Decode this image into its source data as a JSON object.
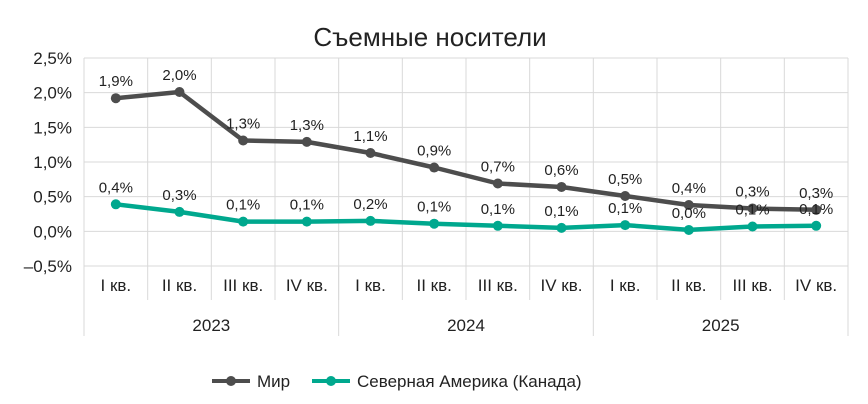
{
  "chart_data": {
    "type": "line",
    "title": "Съемные носители",
    "xlabel": "",
    "ylabel": "",
    "ylim": [
      -0.5,
      2.5
    ],
    "yticks": [
      "2,5%",
      "2,0%",
      "1,5%",
      "1,0%",
      "0,5%",
      "0,0%",
      "–0,5%"
    ],
    "ytick_values": [
      2.5,
      2.0,
      1.5,
      1.0,
      0.5,
      0.0,
      -0.5
    ],
    "categories": [
      "I кв.",
      "II кв.",
      "III кв.",
      "IV кв.",
      "I кв.",
      "II кв.",
      "III кв.",
      "IV кв.",
      "I кв.",
      "II кв.",
      "III кв.",
      "IV кв."
    ],
    "groups": [
      {
        "label": "2023",
        "count": 4
      },
      {
        "label": "2024",
        "count": 4
      },
      {
        "label": "2025",
        "count": 4
      }
    ],
    "grid": true,
    "legend_position": "bottom",
    "series": [
      {
        "name": "Мир",
        "color": "#4d4d4d",
        "values": [
          1.92,
          2.01,
          1.31,
          1.29,
          1.13,
          0.92,
          0.69,
          0.64,
          0.51,
          0.38,
          0.33,
          0.31
        ],
        "labels": [
          "1,9%",
          "2,0%",
          "1,3%",
          "1,3%",
          "1,1%",
          "0,9%",
          "0,7%",
          "0,6%",
          "0,5%",
          "0,4%",
          "0,3%",
          "0,3%"
        ]
      },
      {
        "name": "Северная Америка (Канада)",
        "color": "#00a88e",
        "values": [
          0.39,
          0.28,
          0.14,
          0.14,
          0.15,
          0.11,
          0.08,
          0.05,
          0.09,
          0.02,
          0.07,
          0.08
        ],
        "labels": [
          "0,4%",
          "0,3%",
          "0,1%",
          "0,1%",
          "0,2%",
          "0,1%",
          "0,1%",
          "0,1%",
          "0,1%",
          "0,0%",
          "0,1%",
          "0,1%"
        ]
      }
    ]
  }
}
